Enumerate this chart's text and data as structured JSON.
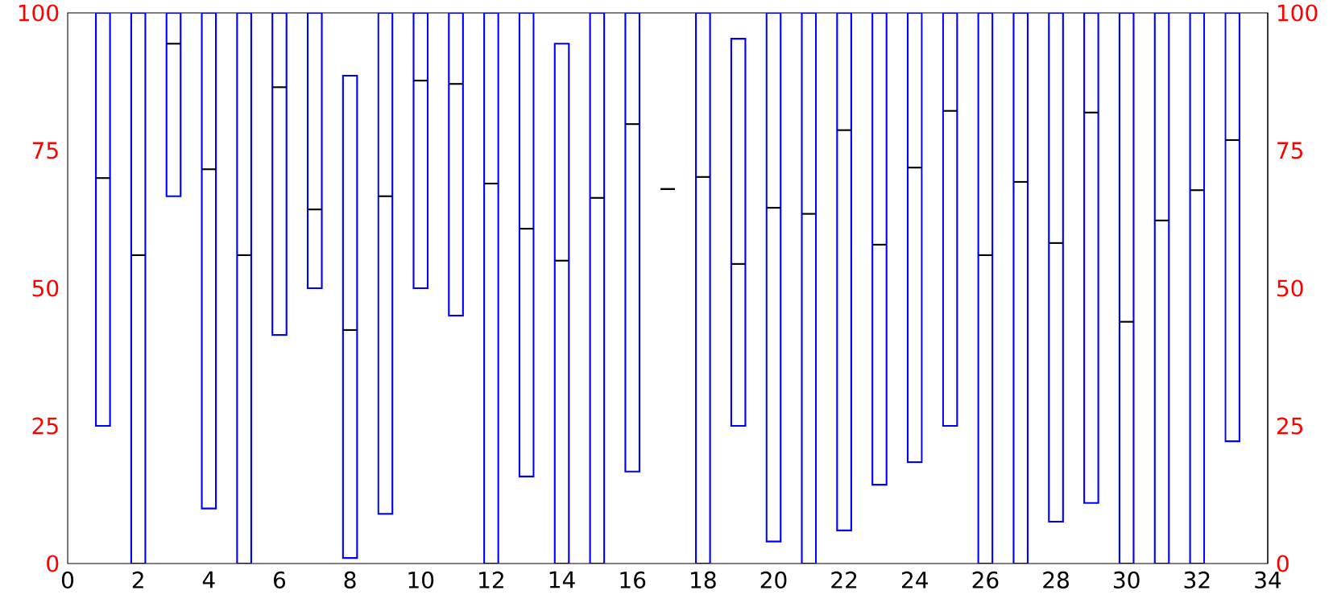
{
  "chart_data": {
    "type": "box",
    "x": [
      1,
      2,
      3,
      4,
      5,
      6,
      7,
      8,
      9,
      10,
      11,
      12,
      13,
      14,
      15,
      16,
      17,
      18,
      19,
      20,
      21,
      22,
      23,
      24,
      25,
      26,
      27,
      28,
      29,
      30,
      31,
      32,
      33
    ],
    "xlim": [
      0,
      34
    ],
    "xticks": [
      0,
      2,
      4,
      6,
      8,
      10,
      12,
      14,
      16,
      18,
      20,
      22,
      24,
      26,
      28,
      30,
      32,
      34
    ],
    "ylim": [
      0,
      100
    ],
    "yticks": [
      0,
      25,
      50,
      75,
      100
    ],
    "y2lim": [
      0,
      100
    ],
    "y2ticks": [
      0,
      25,
      50,
      75,
      100
    ],
    "series": [
      {
        "color": "#0000ff",
        "boxes": [
          {
            "low": 25,
            "q1": 25,
            "median": 70,
            "q3": 100,
            "high": 100
          },
          {
            "low": 0,
            "q1": 0,
            "median": 56,
            "q3": 100,
            "high": 100
          },
          {
            "low": 66.7,
            "q1": 66.7,
            "median": 94.4,
            "q3": 100,
            "high": 100
          },
          {
            "low": 10,
            "q1": 10,
            "median": 71.6,
            "q3": 100,
            "high": 100
          },
          {
            "low": 0,
            "q1": 0,
            "median": 56,
            "q3": 100,
            "high": 100
          },
          {
            "low": 41.5,
            "q1": 41.5,
            "median": 86.5,
            "q3": 100,
            "high": 100
          },
          {
            "low": 50,
            "q1": 50,
            "median": 64.3,
            "q3": 100,
            "high": 100
          },
          {
            "low": 1,
            "q1": 1,
            "median": 42.4,
            "q3": 88.6,
            "high": 88.6
          },
          {
            "low": 9,
            "q1": 9,
            "median": 66.7,
            "q3": 100,
            "high": 100
          },
          {
            "low": 50,
            "q1": 50,
            "median": 87.7,
            "q3": 100,
            "high": 100
          },
          {
            "low": 45,
            "q1": 45,
            "median": 87.1,
            "q3": 100,
            "high": 100
          },
          {
            "low": 0,
            "q1": 0,
            "median": 69,
            "q3": 100,
            "high": 100
          },
          {
            "low": 15.8,
            "q1": 15.8,
            "median": 60.8,
            "q3": 100,
            "high": 100
          },
          {
            "low": 0,
            "q1": 0,
            "median": 55,
            "q3": 94.4,
            "high": 94.4
          },
          {
            "low": 0,
            "q1": 0,
            "median": 66.4,
            "q3": 100,
            "high": 100
          },
          {
            "low": 16.7,
            "q1": 16.7,
            "median": 79.8,
            "q3": 100,
            "high": 100
          },
          {
            "low": 68,
            "q1": 68,
            "median": 68,
            "q3": 68,
            "high": 68
          },
          {
            "low": 0,
            "q1": 0,
            "median": 70.2,
            "q3": 100,
            "high": 100
          },
          {
            "low": 25,
            "q1": 25,
            "median": 54.4,
            "q3": 95.3,
            "high": 95.3
          },
          {
            "low": 4,
            "q1": 4,
            "median": 64.6,
            "q3": 100,
            "high": 100
          },
          {
            "low": 0,
            "q1": 0,
            "median": 63.5,
            "q3": 100,
            "high": 100
          },
          {
            "low": 6,
            "q1": 6,
            "median": 78.7,
            "q3": 100,
            "high": 100
          },
          {
            "low": 14.3,
            "q1": 14.3,
            "median": 57.9,
            "q3": 100,
            "high": 100
          },
          {
            "low": 18.4,
            "q1": 18.4,
            "median": 71.9,
            "q3": 100,
            "high": 100
          },
          {
            "low": 25,
            "q1": 25,
            "median": 82.2,
            "q3": 100,
            "high": 100
          },
          {
            "low": 0,
            "q1": 0,
            "median": 56,
            "q3": 100,
            "high": 100
          },
          {
            "low": 0,
            "q1": 0,
            "median": 69.3,
            "q3": 100,
            "high": 100
          },
          {
            "low": 7.6,
            "q1": 7.6,
            "median": 58.2,
            "q3": 100,
            "high": 100
          },
          {
            "low": 11,
            "q1": 11,
            "median": 81.9,
            "q3": 100,
            "high": 100
          },
          {
            "low": 0,
            "q1": 0,
            "median": 43.9,
            "q3": 100,
            "high": 100
          },
          {
            "low": 0,
            "q1": 0,
            "median": 62.3,
            "q3": 100,
            "high": 100
          },
          {
            "low": 0,
            "q1": 0,
            "median": 67.8,
            "q3": 100,
            "high": 100
          },
          {
            "low": 22.2,
            "q1": 22.2,
            "median": 76.9,
            "q3": 100,
            "high": 100
          }
        ]
      }
    ]
  }
}
